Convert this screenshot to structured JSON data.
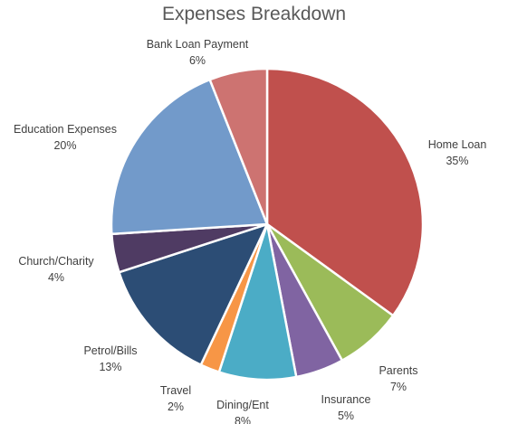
{
  "chart_data": {
    "type": "pie",
    "title": "Expenses Breakdown",
    "categories": [
      "Home Loan",
      "Parents",
      "Insurance",
      "Dining/Ent",
      "Travel",
      "Petrol/Bills",
      "Church/Charity",
      "Education Expenses",
      "Bank Loan Payment"
    ],
    "values": [
      35,
      7,
      5,
      8,
      2,
      13,
      4,
      20,
      6
    ],
    "percent_labels": [
      "35%",
      "7%",
      "5%",
      "8%",
      "2%",
      "13%",
      "4%",
      "20%",
      "6%"
    ],
    "colors": [
      "#c0504d",
      "#9bbb59",
      "#8064a2",
      "#4bacc6",
      "#f79646",
      "#2c4d75",
      "#4f3b63",
      "#729aca",
      "#cd7371"
    ],
    "legend": "none",
    "start_angle_deg": 0,
    "direction": "clockwise"
  }
}
